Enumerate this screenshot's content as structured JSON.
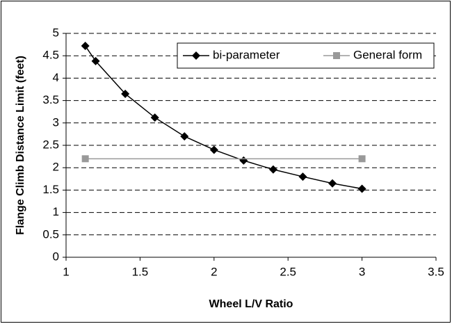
{
  "chart_data": {
    "type": "line",
    "xlabel": "Wheel L/V Ratio",
    "ylabel": "Flange Climb Distance Limit (feet)",
    "series": [
      {
        "name": "bi-parameter",
        "color": "#000000",
        "marker": "diamond",
        "x": [
          1.13,
          1.2,
          1.4,
          1.6,
          1.8,
          2.0,
          2.2,
          2.4,
          2.6,
          2.8,
          3.0
        ],
        "values": [
          4.72,
          4.38,
          3.65,
          3.12,
          2.7,
          2.4,
          2.16,
          1.96,
          1.8,
          1.65,
          1.53
        ]
      },
      {
        "name": "General form",
        "color": "#999999",
        "marker": "square",
        "x": [
          1.13,
          3.0
        ],
        "values": [
          2.2,
          2.2
        ]
      }
    ],
    "xlim": [
      1,
      3.5
    ],
    "xticks": [
      1,
      1.5,
      2,
      2.5,
      3,
      3.5
    ],
    "ylim": [
      0,
      5
    ],
    "yticks": [
      0,
      0.5,
      1,
      1.5,
      2,
      2.5,
      3,
      3.5,
      4,
      4.5,
      5
    ],
    "grid": true,
    "legend": "upper right"
  }
}
